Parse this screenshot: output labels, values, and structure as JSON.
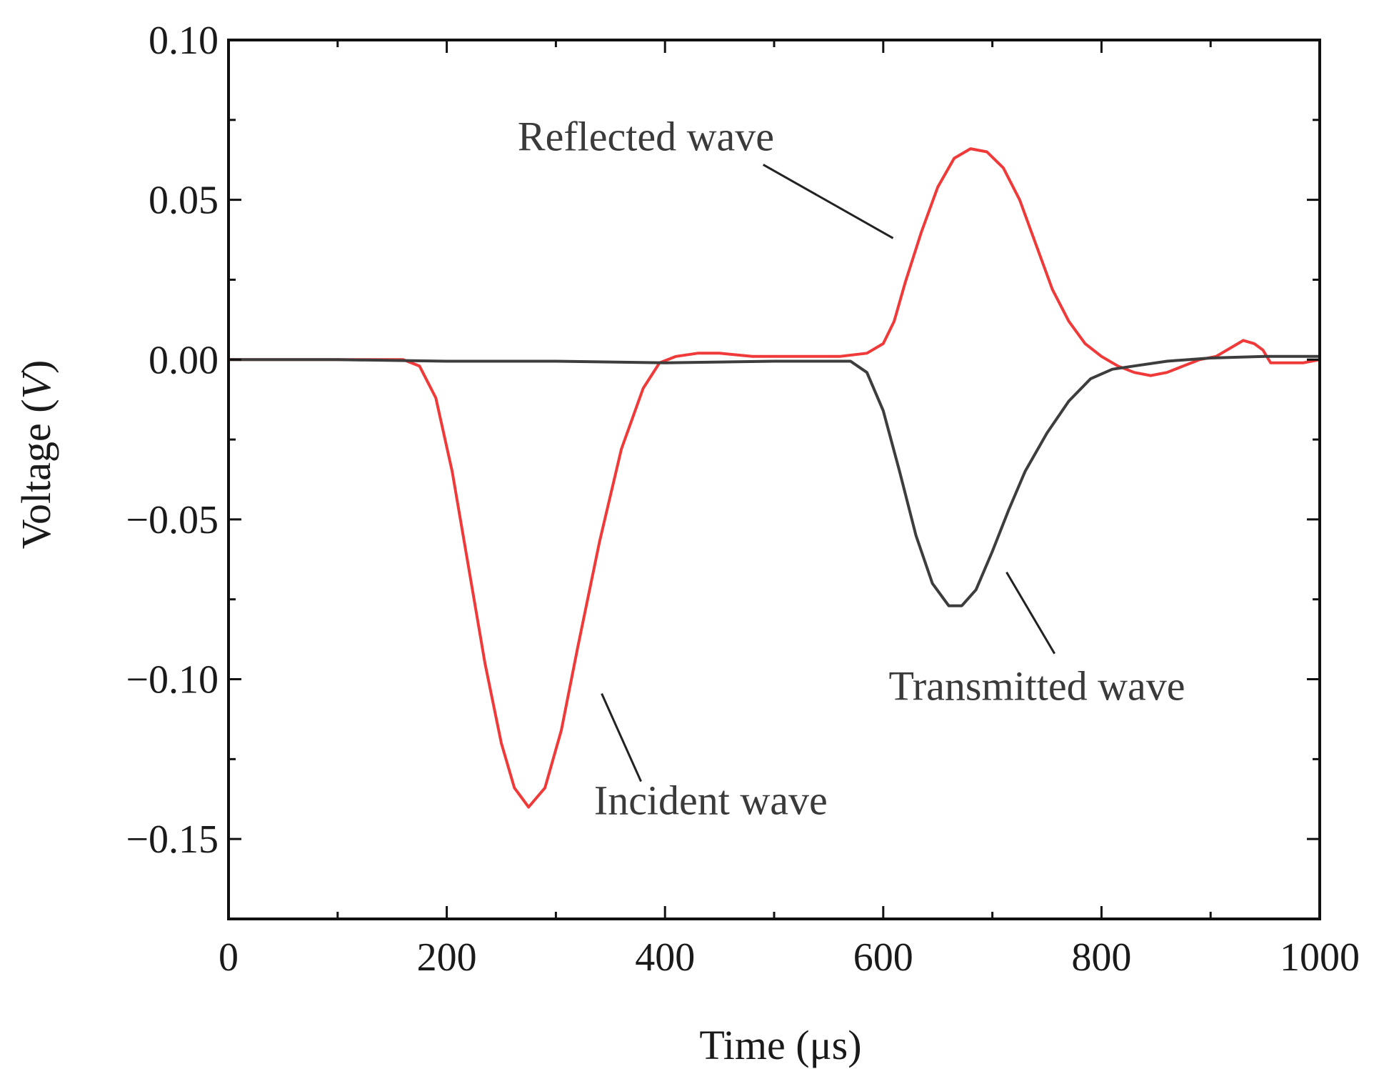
{
  "chart_data": {
    "type": "line",
    "title": "",
    "xlabel": "Time (μs)",
    "ylabel_prefix": "Voltage (",
    "ylabel_unit": "V",
    "ylabel_suffix": ")",
    "xlim": [
      0,
      1000
    ],
    "ylim": [
      -0.175,
      0.1
    ],
    "xticks": [
      0,
      200,
      400,
      600,
      800,
      1000
    ],
    "xtick_labels": [
      "0",
      "200",
      "400",
      "600",
      "800",
      "1000"
    ],
    "yticks": [
      0.1,
      0.05,
      0.0,
      -0.05,
      -0.1,
      -0.15
    ],
    "ytick_labels": [
      "0.10",
      "0.05",
      "0.00",
      "−0.05",
      "−0.10",
      "−0.15"
    ],
    "grid": false,
    "series": [
      {
        "name": "Incident / Reflected wave",
        "color": "#f03a3a",
        "x": [
          0,
          100,
          160,
          175,
          190,
          205,
          220,
          235,
          250,
          262,
          275,
          290,
          305,
          320,
          340,
          360,
          380,
          395,
          410,
          430,
          450,
          480,
          520,
          560,
          585,
          600,
          610,
          620,
          635,
          650,
          665,
          680,
          695,
          710,
          725,
          740,
          755,
          770,
          785,
          800,
          815,
          830,
          845,
          860,
          875,
          890,
          905,
          920,
          930,
          940,
          948,
          955,
          962,
          985,
          1000
        ],
        "y": [
          0.0,
          0.0,
          0.0,
          -0.002,
          -0.012,
          -0.035,
          -0.065,
          -0.095,
          -0.12,
          -0.134,
          -0.14,
          -0.134,
          -0.116,
          -0.09,
          -0.057,
          -0.028,
          -0.009,
          -0.001,
          0.001,
          0.002,
          0.002,
          0.001,
          0.001,
          0.001,
          0.002,
          0.005,
          0.012,
          0.024,
          0.04,
          0.054,
          0.063,
          0.066,
          0.065,
          0.06,
          0.05,
          0.036,
          0.022,
          0.012,
          0.005,
          0.001,
          -0.002,
          -0.004,
          -0.005,
          -0.004,
          -0.002,
          0.0,
          0.001,
          0.004,
          0.006,
          0.005,
          0.003,
          -0.001,
          -0.001,
          -0.001,
          0.0
        ]
      },
      {
        "name": "Transmitted wave",
        "color": "#3d3d3d",
        "x": [
          0,
          100,
          200,
          300,
          400,
          500,
          570,
          585,
          600,
          615,
          630,
          645,
          660,
          672,
          685,
          700,
          715,
          730,
          750,
          770,
          790,
          810,
          830,
          860,
          900,
          950,
          1000
        ],
        "y": [
          0.0,
          0.0,
          -0.0005,
          -0.0005,
          -0.001,
          -0.0005,
          -0.0005,
          -0.004,
          -0.016,
          -0.035,
          -0.055,
          -0.07,
          -0.077,
          -0.077,
          -0.072,
          -0.06,
          -0.047,
          -0.035,
          -0.023,
          -0.013,
          -0.006,
          -0.003,
          -0.002,
          -0.0005,
          0.0005,
          0.001,
          0.001
        ]
      }
    ],
    "annotations": [
      {
        "text": "Reflected wave",
        "x_data": 620,
        "y_data": 0.04
      },
      {
        "text": "Transmitted wave",
        "x_data": 700,
        "y_data": -0.065
      },
      {
        "text": "Incident wave",
        "x_data": 345,
        "y_data": -0.105
      }
    ]
  }
}
